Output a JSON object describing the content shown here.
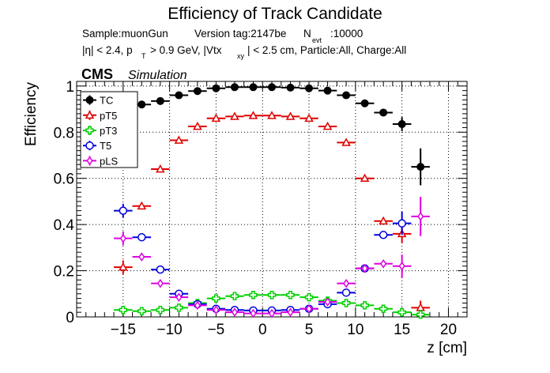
{
  "chart_data": {
    "type": "scatter",
    "title": "Efficiency of Track Candidate",
    "subtitle": {
      "sample": "Sample:muonGun",
      "version": "Version tag:2147be",
      "nevt_label": "N",
      "nevt_sub": "evt",
      "nevt_value": ":10000",
      "cut_eta": "|η| < 2.4, p",
      "cut_pt_sub": "T",
      "cut_pt": "> 0.9 GeV, |Vtx",
      "cut_vtx_sub": "xy",
      "cut_rest": "| < 2.5 cm, Particle:All, Charge:All"
    },
    "cms_label": "CMS",
    "cms_extra": "Simulation",
    "xlabel": "z [cm]",
    "ylabel": "Efficiency",
    "xlim": [
      -20,
      22
    ],
    "ylim": [
      0,
      1.02
    ],
    "xticks": [
      -15,
      -10,
      -5,
      0,
      5,
      10,
      15,
      20
    ],
    "xtick_labels": [
      "−15",
      "−10",
      "−5",
      "0",
      "5",
      "10",
      "15",
      "20"
    ],
    "yticks": [
      0,
      0.2,
      0.4,
      0.6,
      0.8,
      1
    ],
    "ytick_labels": [
      "0",
      "0.2",
      "0.4",
      "0.6",
      "0.8",
      "1"
    ],
    "grid": true,
    "legend_position": "top-left",
    "series": [
      {
        "name": "TC",
        "color": "#000000",
        "marker": "filled-circle",
        "points": [
          {
            "x": -13,
            "y": 0.92,
            "xerr": 1,
            "yerr": 0.01
          },
          {
            "x": -11,
            "y": 0.935,
            "xerr": 1,
            "yerr": 0.008
          },
          {
            "x": -9,
            "y": 0.96,
            "xerr": 1,
            "yerr": 0.006
          },
          {
            "x": -7,
            "y": 0.978,
            "xerr": 1,
            "yerr": 0.005
          },
          {
            "x": -5,
            "y": 0.99,
            "xerr": 1,
            "yerr": 0.004
          },
          {
            "x": -3,
            "y": 0.995,
            "xerr": 1,
            "yerr": 0.003
          },
          {
            "x": -1,
            "y": 0.995,
            "xerr": 1,
            "yerr": 0.003
          },
          {
            "x": 1,
            "y": 0.995,
            "xerr": 1,
            "yerr": 0.003
          },
          {
            "x": 3,
            "y": 0.993,
            "xerr": 1,
            "yerr": 0.003
          },
          {
            "x": 5,
            "y": 0.99,
            "xerr": 1,
            "yerr": 0.004
          },
          {
            "x": 7,
            "y": 0.98,
            "xerr": 1,
            "yerr": 0.005
          },
          {
            "x": 9,
            "y": 0.96,
            "xerr": 1,
            "yerr": 0.006
          },
          {
            "x": 11,
            "y": 0.925,
            "xerr": 1,
            "yerr": 0.008
          },
          {
            "x": 13,
            "y": 0.885,
            "xerr": 1,
            "yerr": 0.012
          },
          {
            "x": 15,
            "y": 0.835,
            "xerr": 1,
            "yerr": 0.03
          },
          {
            "x": 17,
            "y": 0.65,
            "xerr": 1,
            "yerr": 0.08
          }
        ]
      },
      {
        "name": "pT5",
        "color": "#e00000",
        "marker": "open-triangle",
        "points": [
          {
            "x": -15,
            "y": 0.215,
            "xerr": 1,
            "yerr": 0.03
          },
          {
            "x": -13,
            "y": 0.48,
            "xerr": 1,
            "yerr": 0.015
          },
          {
            "x": -11,
            "y": 0.64,
            "xerr": 1,
            "yerr": 0.01
          },
          {
            "x": -9,
            "y": 0.765,
            "xerr": 1,
            "yerr": 0.008
          },
          {
            "x": -7,
            "y": 0.825,
            "xerr": 1,
            "yerr": 0.007
          },
          {
            "x": -5,
            "y": 0.86,
            "xerr": 1,
            "yerr": 0.006
          },
          {
            "x": -3,
            "y": 0.868,
            "xerr": 1,
            "yerr": 0.006
          },
          {
            "x": -1,
            "y": 0.872,
            "xerr": 1,
            "yerr": 0.006
          },
          {
            "x": 1,
            "y": 0.872,
            "xerr": 1,
            "yerr": 0.006
          },
          {
            "x": 3,
            "y": 0.868,
            "xerr": 1,
            "yerr": 0.006
          },
          {
            "x": 5,
            "y": 0.86,
            "xerr": 1,
            "yerr": 0.006
          },
          {
            "x": 7,
            "y": 0.825,
            "xerr": 1,
            "yerr": 0.007
          },
          {
            "x": 9,
            "y": 0.755,
            "xerr": 1,
            "yerr": 0.008
          },
          {
            "x": 11,
            "y": 0.6,
            "xerr": 1,
            "yerr": 0.01
          },
          {
            "x": 13,
            "y": 0.415,
            "xerr": 1,
            "yerr": 0.015
          },
          {
            "x": 15,
            "y": 0.36,
            "xerr": 1,
            "yerr": 0.04
          },
          {
            "x": 17,
            "y": 0.04,
            "xerr": 1,
            "yerr": 0.03
          }
        ]
      },
      {
        "name": "pT3",
        "color": "#00d000",
        "marker": "open-cross",
        "points": [
          {
            "x": -15,
            "y": 0.03,
            "xerr": 1,
            "yerr": 0.01
          },
          {
            "x": -13,
            "y": 0.025,
            "xerr": 1,
            "yerr": 0.008
          },
          {
            "x": -11,
            "y": 0.03,
            "xerr": 1,
            "yerr": 0.006
          },
          {
            "x": -9,
            "y": 0.04,
            "xerr": 1,
            "yerr": 0.005
          },
          {
            "x": -7,
            "y": 0.06,
            "xerr": 1,
            "yerr": 0.005
          },
          {
            "x": -5,
            "y": 0.08,
            "xerr": 1,
            "yerr": 0.005
          },
          {
            "x": -3,
            "y": 0.09,
            "xerr": 1,
            "yerr": 0.005
          },
          {
            "x": -1,
            "y": 0.095,
            "xerr": 1,
            "yerr": 0.005
          },
          {
            "x": 1,
            "y": 0.095,
            "xerr": 1,
            "yerr": 0.005
          },
          {
            "x": 3,
            "y": 0.095,
            "xerr": 1,
            "yerr": 0.005
          },
          {
            "x": 5,
            "y": 0.085,
            "xerr": 1,
            "yerr": 0.005
          },
          {
            "x": 7,
            "y": 0.07,
            "xerr": 1,
            "yerr": 0.005
          },
          {
            "x": 9,
            "y": 0.06,
            "xerr": 1,
            "yerr": 0.005
          },
          {
            "x": 11,
            "y": 0.05,
            "xerr": 1,
            "yerr": 0.006
          },
          {
            "x": 13,
            "y": 0.035,
            "xerr": 1,
            "yerr": 0.008
          },
          {
            "x": 15,
            "y": 0.02,
            "xerr": 1,
            "yerr": 0.015
          },
          {
            "x": 17,
            "y": 0.01,
            "xerr": 1,
            "yerr": 0.02
          }
        ]
      },
      {
        "name": "T5",
        "color": "#0000e0",
        "marker": "open-circle",
        "points": [
          {
            "x": -15,
            "y": 0.46,
            "xerr": 1,
            "yerr": 0.03
          },
          {
            "x": -13,
            "y": 0.345,
            "xerr": 1,
            "yerr": 0.015
          },
          {
            "x": -11,
            "y": 0.205,
            "xerr": 1,
            "yerr": 0.01
          },
          {
            "x": -9,
            "y": 0.1,
            "xerr": 1,
            "yerr": 0.008
          },
          {
            "x": -7,
            "y": 0.055,
            "xerr": 1,
            "yerr": 0.006
          },
          {
            "x": -5,
            "y": 0.035,
            "xerr": 1,
            "yerr": 0.005
          },
          {
            "x": -3,
            "y": 0.03,
            "xerr": 1,
            "yerr": 0.005
          },
          {
            "x": -1,
            "y": 0.028,
            "xerr": 1,
            "yerr": 0.005
          },
          {
            "x": 1,
            "y": 0.028,
            "xerr": 1,
            "yerr": 0.005
          },
          {
            "x": 3,
            "y": 0.03,
            "xerr": 1,
            "yerr": 0.005
          },
          {
            "x": 5,
            "y": 0.035,
            "xerr": 1,
            "yerr": 0.005
          },
          {
            "x": 7,
            "y": 0.055,
            "xerr": 1,
            "yerr": 0.006
          },
          {
            "x": 9,
            "y": 0.105,
            "xerr": 1,
            "yerr": 0.008
          },
          {
            "x": 11,
            "y": 0.21,
            "xerr": 1,
            "yerr": 0.01
          },
          {
            "x": 13,
            "y": 0.355,
            "xerr": 1,
            "yerr": 0.015
          },
          {
            "x": 15,
            "y": 0.405,
            "xerr": 1,
            "yerr": 0.05
          }
        ]
      },
      {
        "name": "pLS",
        "color": "#e000e0",
        "marker": "open-diamond",
        "points": [
          {
            "x": -15,
            "y": 0.34,
            "xerr": 1,
            "yerr": 0.03
          },
          {
            "x": -13,
            "y": 0.26,
            "xerr": 1,
            "yerr": 0.012
          },
          {
            "x": -11,
            "y": 0.145,
            "xerr": 1,
            "yerr": 0.008
          },
          {
            "x": -9,
            "y": 0.085,
            "xerr": 1,
            "yerr": 0.006
          },
          {
            "x": -7,
            "y": 0.05,
            "xerr": 1,
            "yerr": 0.005
          },
          {
            "x": -5,
            "y": 0.03,
            "xerr": 1,
            "yerr": 0.005
          },
          {
            "x": -3,
            "y": 0.02,
            "xerr": 1,
            "yerr": 0.004
          },
          {
            "x": -1,
            "y": 0.015,
            "xerr": 1,
            "yerr": 0.004
          },
          {
            "x": 1,
            "y": 0.015,
            "xerr": 1,
            "yerr": 0.004
          },
          {
            "x": 3,
            "y": 0.02,
            "xerr": 1,
            "yerr": 0.004
          },
          {
            "x": 5,
            "y": 0.035,
            "xerr": 1,
            "yerr": 0.005
          },
          {
            "x": 7,
            "y": 0.065,
            "xerr": 1,
            "yerr": 0.006
          },
          {
            "x": 9,
            "y": 0.145,
            "xerr": 1,
            "yerr": 0.008
          },
          {
            "x": 11,
            "y": 0.21,
            "xerr": 1,
            "yerr": 0.01
          },
          {
            "x": 13,
            "y": 0.23,
            "xerr": 1,
            "yerr": 0.015
          },
          {
            "x": 15,
            "y": 0.22,
            "xerr": 1,
            "yerr": 0.05
          },
          {
            "x": 17,
            "y": 0.435,
            "xerr": 1,
            "yerr": 0.085
          }
        ]
      }
    ]
  }
}
